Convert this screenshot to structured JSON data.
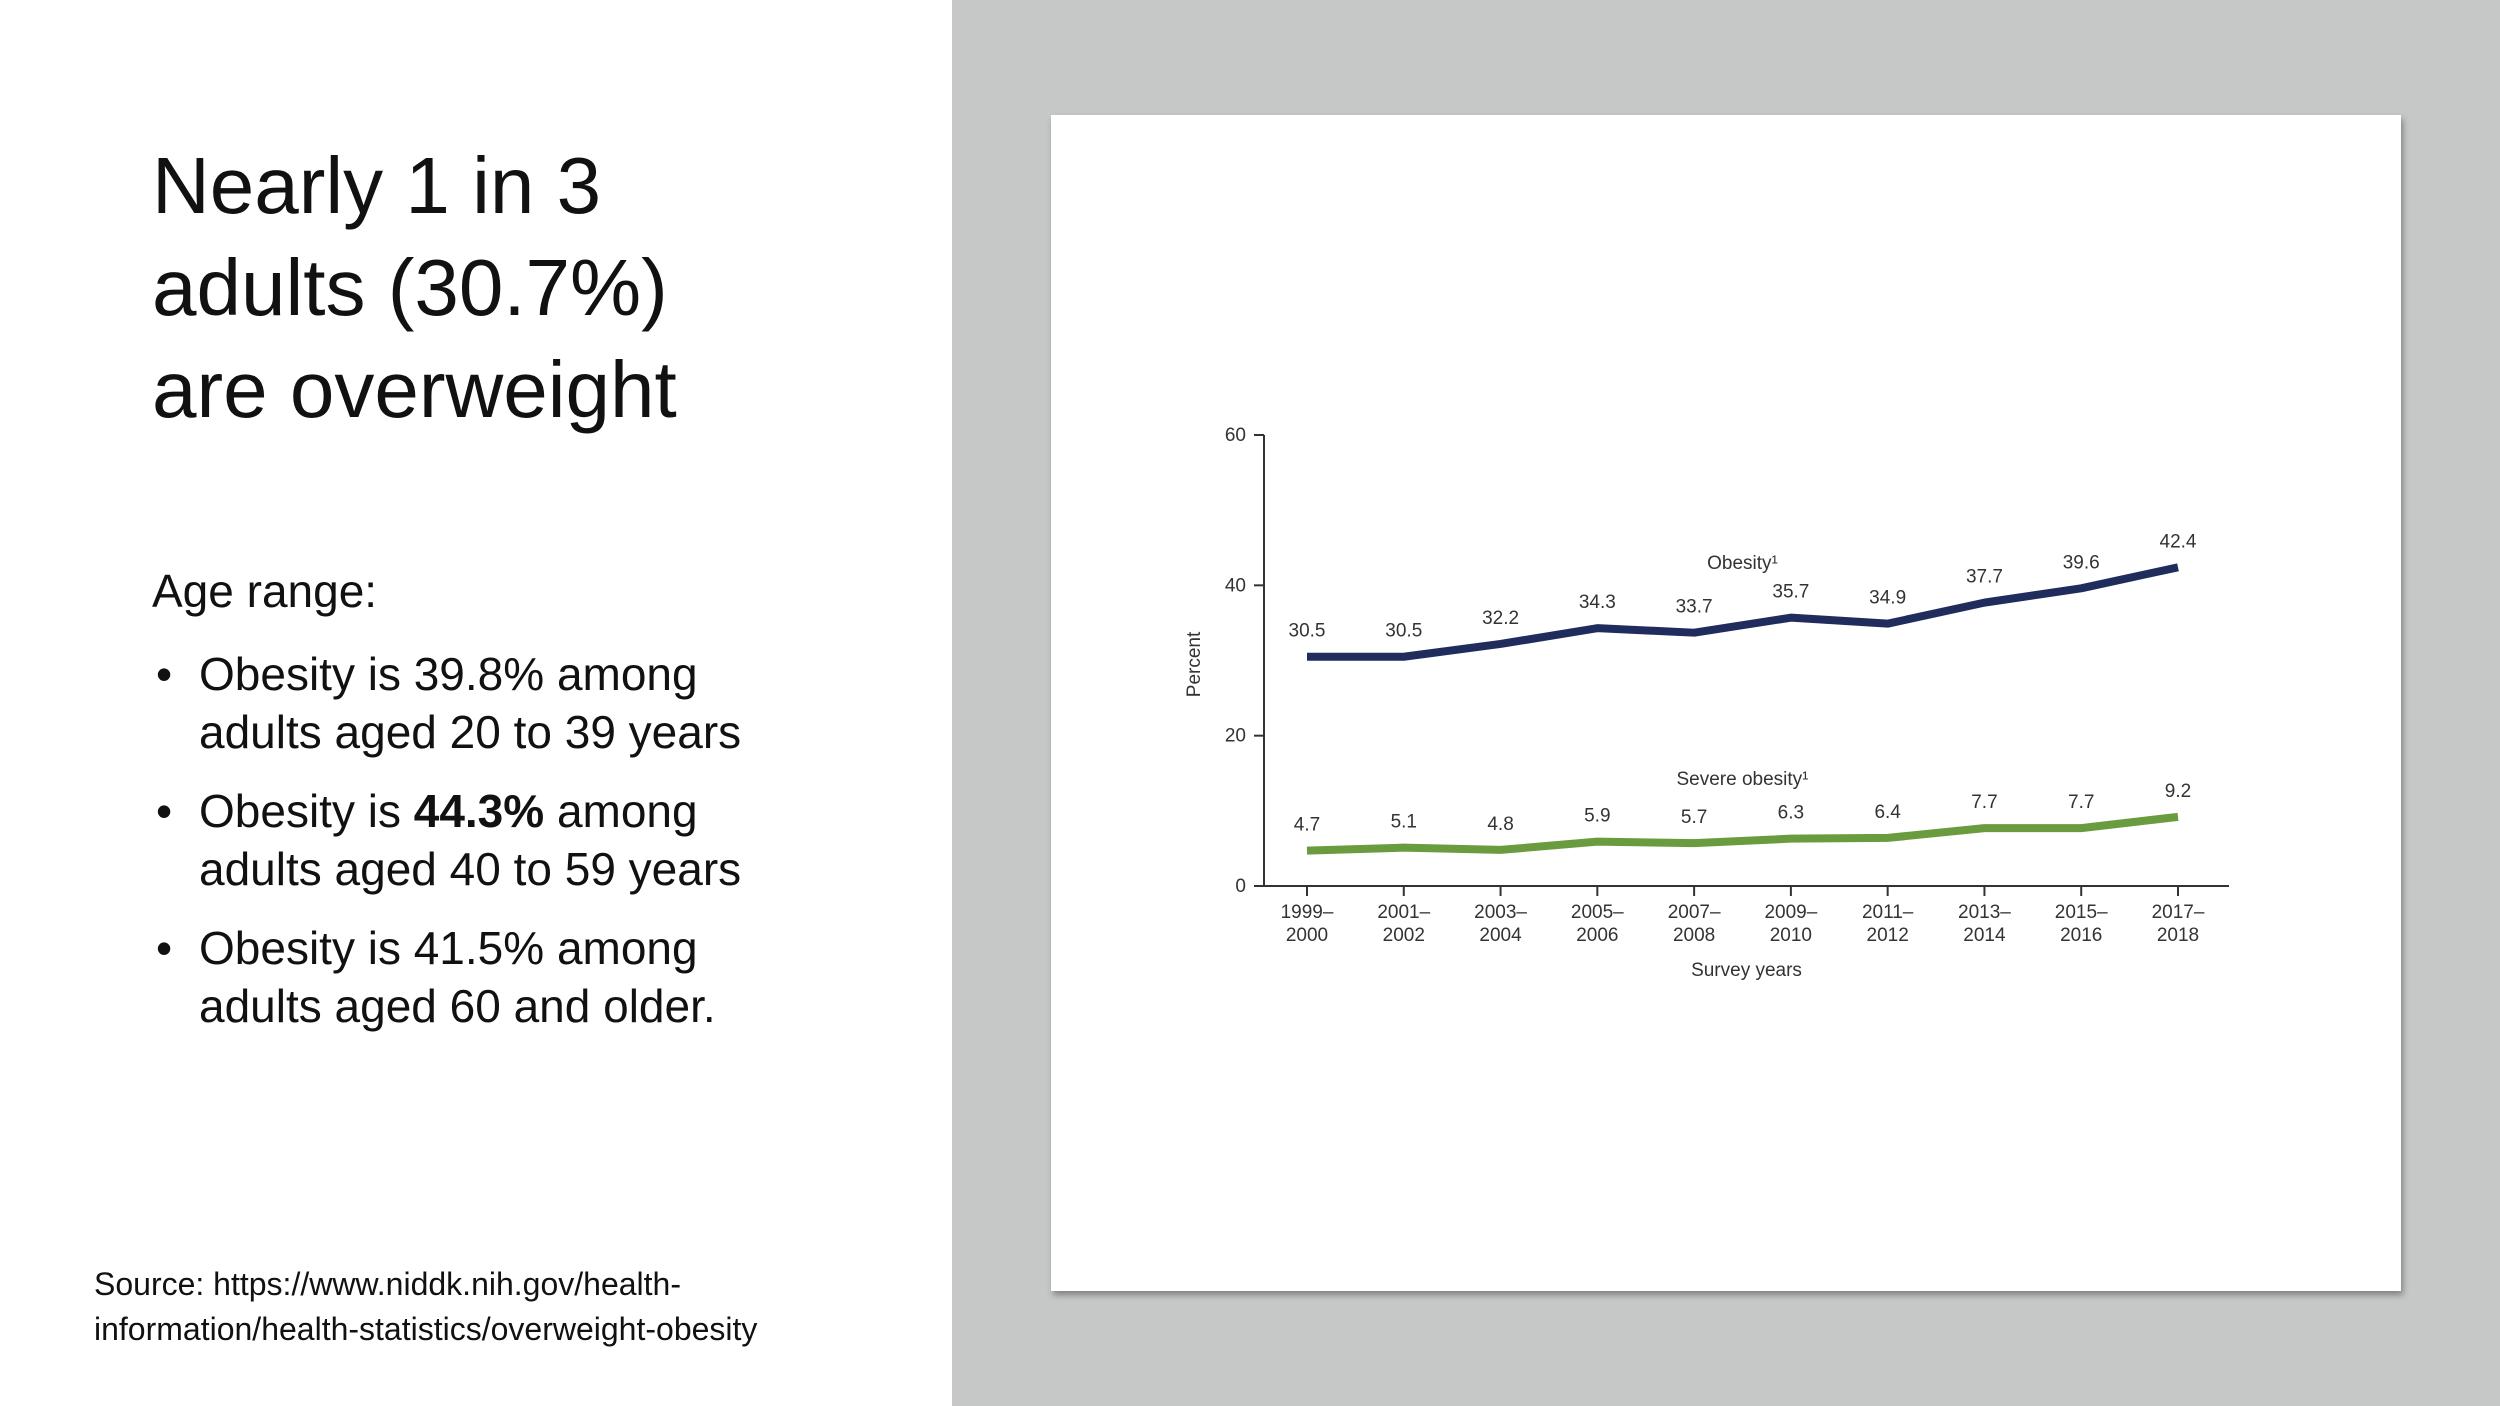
{
  "slide": {
    "title": "Nearly 1 in 3 adults (30.7%) are overweight",
    "subtitle": "Age range:",
    "bullets": [
      {
        "runs": [
          {
            "text": "Obesity is 39.8% among adults aged 20 to 39 years",
            "bold": false
          }
        ]
      },
      {
        "runs": [
          {
            "text": "Obesity is ",
            "bold": false
          },
          {
            "text": "44.3%",
            "bold": true
          },
          {
            "text": " among adults aged 40 to 59 years",
            "bold": false
          }
        ]
      },
      {
        "runs": [
          {
            "text": "Obesity is 41.5% among adults aged 60 and older.",
            "bold": false
          }
        ]
      }
    ],
    "source": "Source: https://www.niddk.nih.gov/health-information/health-statistics/overweight-obesity"
  },
  "chart_data": {
    "type": "line",
    "y_label": "Percent",
    "x_label": "Survey years",
    "categories": [
      "1999–2000",
      "2001–2002",
      "2003–2004",
      "2005–2006",
      "2007–2008",
      "2009–2010",
      "2011–2012",
      "2013–2014",
      "2015–2016",
      "2017–2018"
    ],
    "series": [
      {
        "name": "Obesity¹",
        "color": "#1f2c5c",
        "values": [
          30.5,
          30.5,
          32.2,
          34.3,
          33.7,
          35.7,
          34.9,
          37.7,
          39.6,
          42.4
        ]
      },
      {
        "name": "Severe obesity¹",
        "color": "#6a9b3f",
        "values": [
          4.7,
          5.1,
          4.8,
          5.9,
          5.7,
          6.3,
          6.4,
          7.7,
          7.7,
          9.2
        ]
      }
    ],
    "ylim": [
      0,
      60
    ],
    "yticks": [
      0,
      20,
      40,
      60
    ],
    "grid": false
  }
}
